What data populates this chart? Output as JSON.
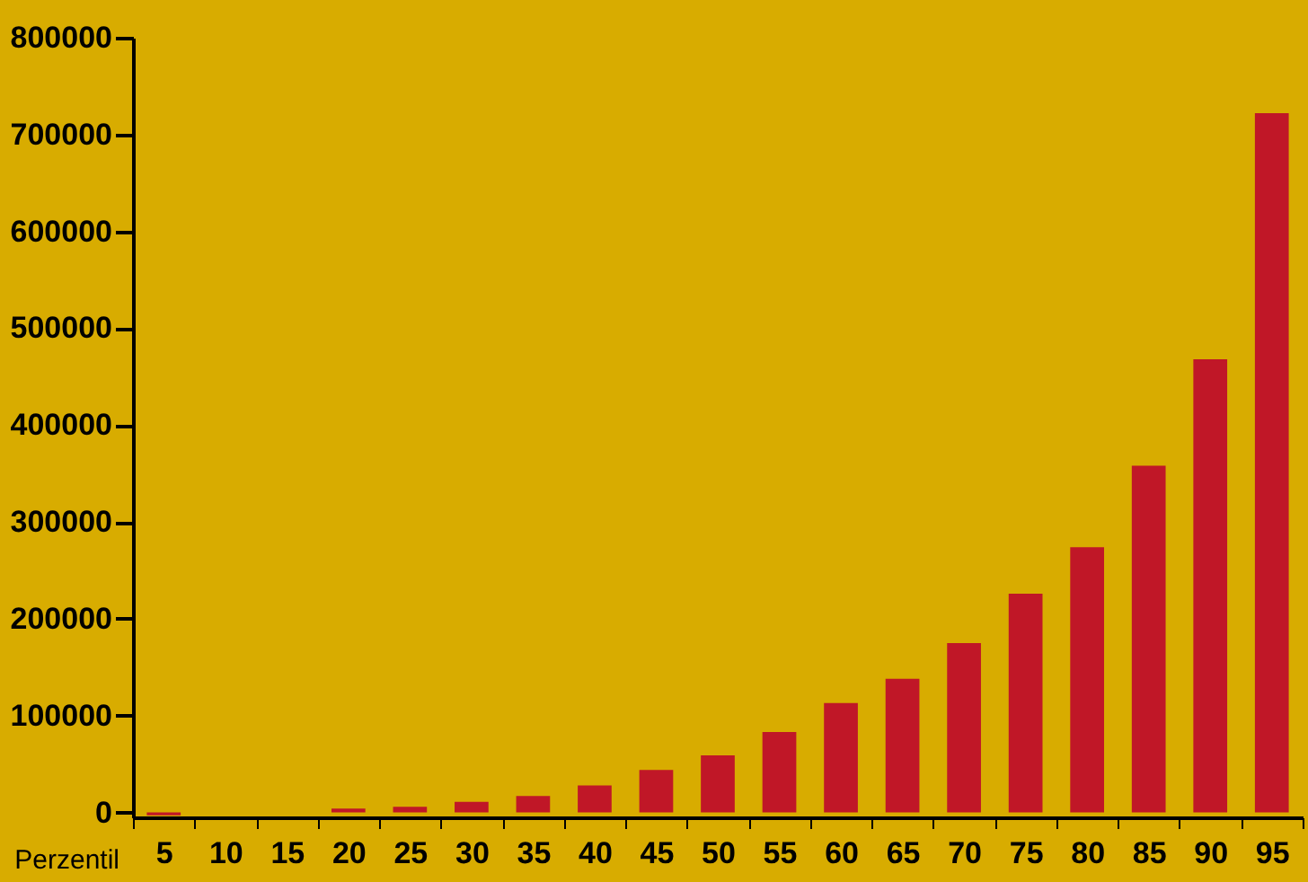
{
  "chart_data": {
    "type": "bar",
    "xlabel": "Perzentil",
    "categories": [
      "5",
      "10",
      "15",
      "20",
      "25",
      "30",
      "35",
      "40",
      "45",
      "50",
      "55",
      "60",
      "65",
      "70",
      "75",
      "80",
      "85",
      "90",
      "95"
    ],
    "values": [
      -3000,
      0,
      0,
      4000,
      6000,
      11000,
      17000,
      28000,
      44000,
      59000,
      83000,
      113000,
      138000,
      175000,
      226000,
      274000,
      358000,
      468000,
      722000
    ],
    "color": "#c01727",
    "ylim": [
      -5000,
      800000
    ],
    "yticks": [
      0,
      100000,
      200000,
      300000,
      400000,
      500000,
      600000,
      700000,
      800000
    ],
    "grid": false
  }
}
